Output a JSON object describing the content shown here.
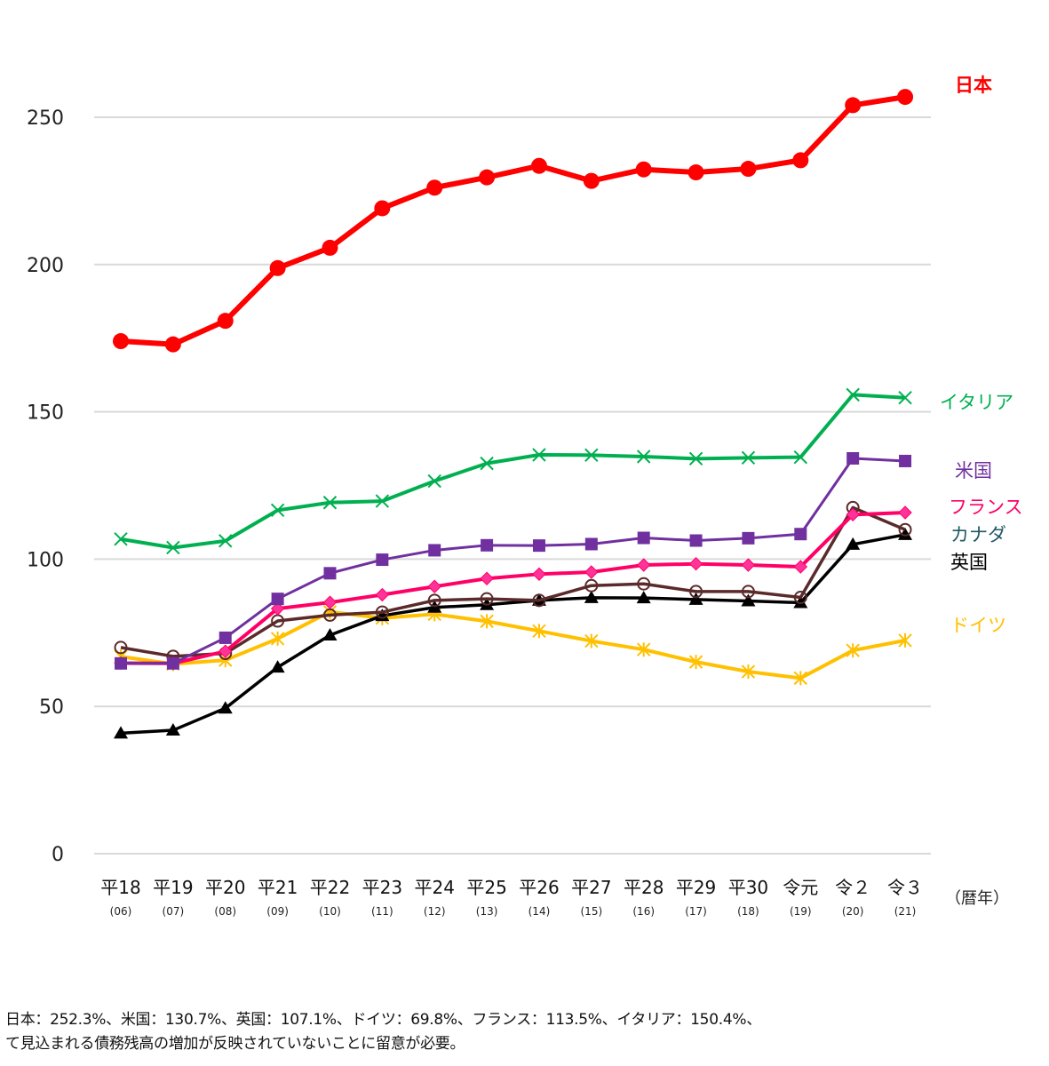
{
  "chart_data": {
    "type": "line",
    "title": "",
    "xlabel": "（暦年）",
    "ylabel": "",
    "ylim": [
      0,
      250
    ],
    "yticks": [
      0,
      50,
      100,
      150,
      200,
      250
    ],
    "grid": true,
    "legend": "inline-right",
    "categories": [
      "平18",
      "平19",
      "平20",
      "平21",
      "平22",
      "平23",
      "平24",
      "平25",
      "平26",
      "平27",
      "平28",
      "平29",
      "平30",
      "令元",
      "令２",
      "令３"
    ],
    "category_sublabels": [
      "(06)",
      "(07)",
      "(08)",
      "(09)",
      "(10)",
      "(11)",
      "(12)",
      "(13)",
      "(14)",
      "(15)",
      "(16)",
      "(17)",
      "(18)",
      "(19)",
      "(20)",
      "(21)"
    ],
    "series": [
      {
        "name": "日本",
        "color": "#ff0000",
        "marker": "circle",
        "values": [
          174.0,
          172.9,
          180.9,
          198.8,
          205.7,
          219.1,
          226.1,
          229.6,
          233.5,
          228.4,
          232.3,
          231.3,
          232.5,
          235.4,
          254.1,
          256.9
        ]
      },
      {
        "name": "イタリア",
        "color": "#00b050",
        "marker": "x",
        "values": [
          106.8,
          103.9,
          106.2,
          116.6,
          119.2,
          119.7,
          126.5,
          132.5,
          135.4,
          135.3,
          134.8,
          134.1,
          134.4,
          134.6,
          155.8,
          154.8
        ]
      },
      {
        "name": "米国",
        "color": "#7030a0",
        "marker": "square",
        "values": [
          64.6,
          64.6,
          73.3,
          86.5,
          95.2,
          99.8,
          103.0,
          104.7,
          104.6,
          105.1,
          107.2,
          106.3,
          107.1,
          108.5,
          134.2,
          133.3
        ]
      },
      {
        "name": "フランス",
        "color": "#ff0066",
        "marker": "diamond",
        "values": [
          64.7,
          64.6,
          68.7,
          83.2,
          85.3,
          87.9,
          90.7,
          93.4,
          94.9,
          95.6,
          98.0,
          98.4,
          98.0,
          97.4,
          115.1,
          115.8
        ]
      },
      {
        "name": "ドイツ",
        "color": "#ffc000",
        "marker": "asterisk",
        "values": [
          66.9,
          64.4,
          65.7,
          73.0,
          82.1,
          80.0,
          81.3,
          78.9,
          75.6,
          72.2,
          69.3,
          65.1,
          61.8,
          59.6,
          69.0,
          72.4
        ]
      },
      {
        "name": "英国",
        "color": "#000000",
        "marker": "triangle",
        "values": [
          40.9,
          41.9,
          49.4,
          63.3,
          74.2,
          80.8,
          83.6,
          84.5,
          86.0,
          86.9,
          86.8,
          86.3,
          85.8,
          85.2,
          105.0,
          108.3
        ]
      },
      {
        "name": "カナダ",
        "color": "#5b2a2a",
        "marker": "open-circle",
        "label_color": "#215967",
        "values": [
          70.0,
          67.0,
          68.0,
          79.0,
          81.0,
          82.0,
          86.0,
          86.5,
          86.0,
          91.0,
          91.6,
          89.0,
          89.0,
          87.0,
          117.5,
          110.0
        ]
      }
    ]
  },
  "footnotes": [
    "日本：252.3%、米国：130.7%、英国：107.1%、ドイツ：69.8%、フランス：113.5%、イタリア：150.4%、",
    "て見込まれる債務残高の増加が反映されていないことに留意が必要。"
  ]
}
